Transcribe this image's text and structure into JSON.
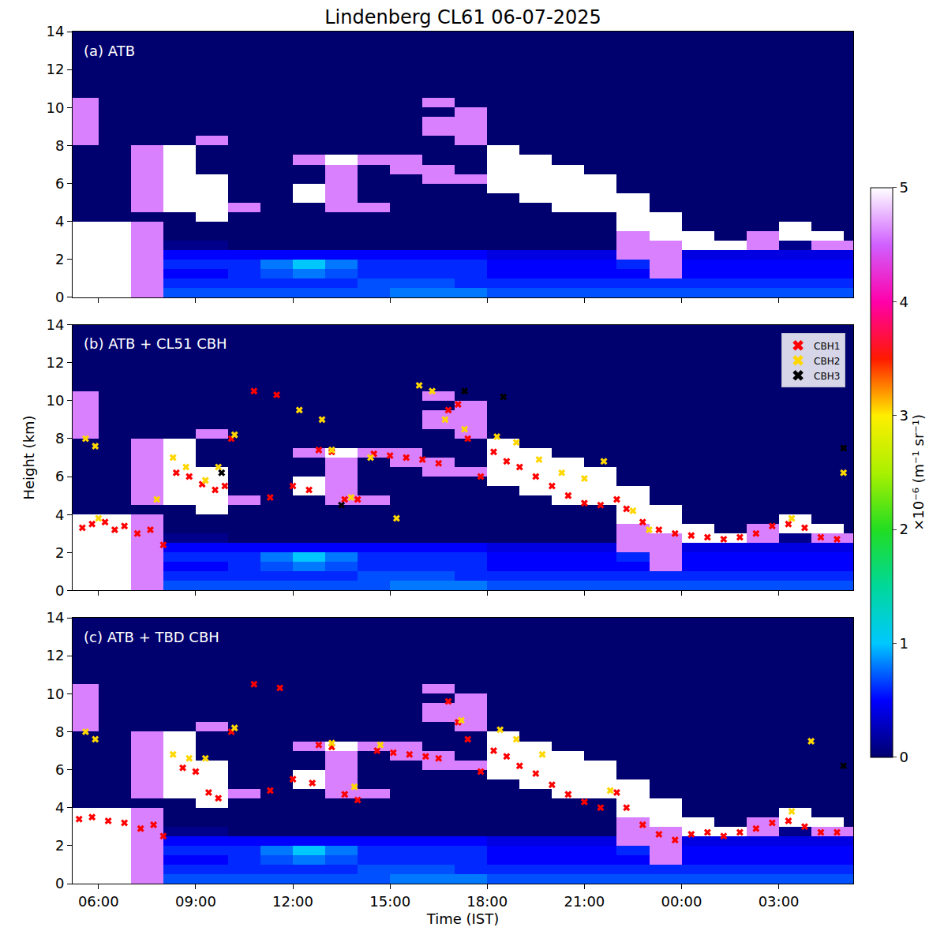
{
  "chart_data": {
    "type": "heatmap",
    "title": "Lindenberg CL61 06-07-2025",
    "x_label": "Time (IST)",
    "y_label": "Height (km)",
    "xlim": [
      5.2,
      29.3
    ],
    "xticks": [
      {
        "value": 6,
        "label": "06:00"
      },
      {
        "value": 9,
        "label": "09:00"
      },
      {
        "value": 12,
        "label": "12:00"
      },
      {
        "value": 15,
        "label": "15:00"
      },
      {
        "value": 18,
        "label": "18:00"
      },
      {
        "value": 21,
        "label": "21:00"
      },
      {
        "value": 24,
        "label": "00:00"
      },
      {
        "value": 27,
        "label": "03:00"
      }
    ],
    "ylim": [
      0,
      14
    ],
    "yticks": [
      0,
      2,
      4,
      6,
      8,
      10,
      12,
      14
    ],
    "colorbar": {
      "title": "×10⁻⁶ (m⁻¹ sr⁻¹)",
      "range": [
        0,
        5
      ],
      "ticks": [
        0,
        1,
        2,
        3,
        4,
        5
      ]
    },
    "cells": {
      "x": [
        5.5,
        6.5,
        7.5,
        8.5,
        9.5,
        10.5,
        11.5,
        12.5,
        13.5,
        14.5,
        15.5,
        16.5,
        17.5,
        18.5,
        19.5,
        20.5,
        21.5,
        22.5,
        23.5,
        24.5,
        25.5,
        26.5,
        27.5,
        28.5,
        29.5
      ],
      "y": [
        0.25,
        0.75,
        1.25,
        1.75,
        2.25,
        2.75,
        3.25,
        3.75,
        4.25,
        4.75,
        5.25,
        5.75,
        6.25,
        6.75,
        7.25,
        7.75,
        8.25,
        8.75,
        9.25,
        9.75,
        10.25,
        10.75,
        11.25,
        11.75,
        12.25,
        12.75,
        13.25,
        13.75
      ],
      "z": [
        [
          5,
          5,
          4.6,
          0.7,
          0.7,
          0.7,
          0.7,
          0.7,
          0.7,
          0.7,
          0.8,
          0.8,
          0.8,
          0.7,
          0.7,
          0.7,
          0.7,
          0.7,
          0.7,
          0.7,
          0.7,
          0.7,
          0.7,
          0.7,
          0.7
        ],
        [
          5,
          5,
          4.6,
          0.6,
          0.6,
          0.6,
          0.6,
          0.6,
          0.6,
          0.7,
          0.7,
          0.7,
          0.6,
          0.6,
          0.6,
          0.6,
          0.6,
          0.6,
          0.6,
          0.6,
          0.6,
          0.6,
          0.6,
          0.6,
          0.6
        ],
        [
          5,
          5,
          4.6,
          0.5,
          0.5,
          0.6,
          0.7,
          0.8,
          0.7,
          0.6,
          0.6,
          0.6,
          0.6,
          0.5,
          0.5,
          0.5,
          0.5,
          0.5,
          4.6,
          0.5,
          0.5,
          0.5,
          0.5,
          0.5,
          0.5
        ],
        [
          5,
          5,
          4.6,
          0.6,
          0.6,
          0.6,
          0.8,
          1,
          0.8,
          0.6,
          0.6,
          0.6,
          0.6,
          0.5,
          0.5,
          0.5,
          0.5,
          0.6,
          4.6,
          0.5,
          0.5,
          0.5,
          0.5,
          0.5,
          0.5
        ],
        [
          5,
          5,
          4.6,
          0.5,
          0.5,
          0.5,
          0.5,
          0.5,
          0.5,
          0.5,
          0.5,
          0.5,
          0.5,
          0.4,
          0.4,
          0.4,
          0.4,
          4.6,
          4.6,
          0.4,
          0.4,
          0.4,
          0.4,
          0.4,
          0.4
        ],
        [
          5,
          5,
          4.6,
          0.1,
          0.1,
          0,
          0,
          0,
          0,
          0,
          0,
          0,
          0,
          0,
          0,
          0,
          0,
          4.6,
          4.6,
          5,
          5,
          4.6,
          0.1,
          4.6,
          4.6
        ],
        [
          5,
          5,
          4.6,
          0,
          0,
          0,
          0,
          0,
          0,
          0,
          0,
          0,
          0,
          0,
          0,
          0,
          0,
          4.6,
          5,
          5,
          0,
          4.6,
          5,
          5,
          0
        ],
        [
          5,
          5,
          4.6,
          0,
          0,
          0,
          0,
          0,
          0,
          0,
          0,
          0,
          0,
          0,
          0,
          0,
          0,
          5,
          5,
          0,
          0,
          0,
          5,
          0,
          0
        ],
        [
          0,
          0,
          0,
          0,
          5,
          0,
          0,
          0,
          0,
          0,
          0,
          0,
          0,
          0,
          0,
          0,
          0,
          5,
          5,
          0,
          0,
          0,
          0,
          0,
          0
        ],
        [
          0,
          0,
          4.6,
          5,
          5,
          4.6,
          0,
          0,
          4.6,
          4.6,
          0,
          0,
          0,
          0,
          0,
          5,
          5,
          5,
          0,
          0,
          0,
          0,
          0,
          0,
          0
        ],
        [
          0,
          0,
          4.6,
          5,
          5,
          0,
          0,
          5,
          4.6,
          0,
          0,
          0,
          0,
          0,
          5,
          5,
          5,
          5,
          0,
          0,
          0,
          0,
          0,
          0,
          0
        ],
        [
          0,
          0,
          4.6,
          5,
          5,
          0,
          0,
          5,
          4.6,
          0,
          0,
          0,
          0,
          5,
          5,
          5,
          5,
          0,
          0,
          0,
          0,
          0,
          0,
          0,
          0
        ],
        [
          0,
          0,
          4.6,
          5,
          5,
          0,
          0,
          0,
          4.6,
          0,
          0,
          4.6,
          4.6,
          5,
          5,
          5,
          5,
          0,
          0,
          0,
          0,
          0,
          0,
          0,
          0
        ],
        [
          0,
          0,
          4.6,
          5,
          0,
          0,
          0,
          0,
          4.6,
          0,
          4.6,
          4.6,
          0,
          5,
          5,
          5,
          0,
          0,
          0,
          0,
          0,
          0,
          0,
          0,
          0
        ],
        [
          0,
          0,
          4.6,
          5,
          0,
          0,
          0,
          4.6,
          5,
          4.6,
          4.6,
          0,
          0,
          5,
          5,
          0,
          0,
          0,
          0,
          0,
          0,
          0,
          0,
          0,
          0
        ],
        [
          0,
          0,
          4.6,
          5,
          0,
          0,
          0,
          0,
          0,
          0,
          0,
          0,
          0,
          5,
          0,
          0,
          0,
          0,
          0,
          0,
          0,
          0,
          0,
          0,
          0
        ],
        [
          4.6,
          0,
          0,
          0,
          4.6,
          0,
          0,
          0,
          0,
          0,
          0,
          0,
          4.6,
          0,
          0,
          0,
          0,
          0,
          0,
          0,
          0,
          0,
          0,
          0,
          0
        ],
        [
          4.6,
          0,
          0,
          0,
          0,
          0,
          0,
          0,
          0,
          0,
          0,
          4.6,
          4.6,
          0,
          0,
          0,
          0,
          0,
          0,
          0,
          0,
          0,
          0,
          0,
          0
        ],
        [
          4.6,
          0,
          0,
          0,
          0,
          0,
          0,
          0,
          0,
          0,
          0,
          4.6,
          4.6,
          0,
          0,
          0,
          0,
          0,
          0,
          0,
          0,
          0,
          0,
          0,
          0
        ],
        [
          4.6,
          0,
          0,
          0,
          0,
          0,
          0,
          0,
          0,
          0,
          0,
          0,
          4.6,
          0,
          0,
          0,
          0,
          0,
          0,
          0,
          0,
          0,
          0,
          0,
          0
        ],
        [
          4.6,
          0,
          0,
          0,
          0,
          0,
          0,
          0,
          0,
          0,
          0,
          4.6,
          0,
          0,
          0,
          0,
          0,
          0,
          0,
          0,
          0,
          0,
          0,
          0,
          0
        ],
        [
          0,
          0,
          0,
          0,
          0,
          0,
          0,
          0,
          0,
          0,
          0,
          0,
          0,
          0,
          0,
          0,
          0,
          0,
          0,
          0,
          0,
          0,
          0,
          0,
          0
        ],
        [
          0,
          0,
          0,
          0,
          0,
          0,
          0,
          0,
          0,
          0,
          0,
          0,
          0,
          0,
          0,
          0,
          0,
          0,
          0,
          0,
          0,
          0,
          0,
          0,
          0
        ],
        [
          0,
          0,
          0,
          0,
          0,
          0,
          0,
          0,
          0,
          0,
          0,
          0,
          0,
          0,
          0,
          0,
          0,
          0,
          0,
          0,
          0,
          0,
          0,
          0,
          0
        ],
        [
          0,
          0,
          0,
          0,
          0,
          0,
          0,
          0,
          0,
          0,
          0,
          0,
          0,
          0,
          0,
          0,
          0,
          0,
          0,
          0,
          0,
          0,
          0,
          0,
          0
        ],
        [
          0,
          0,
          0,
          0,
          0,
          0,
          0,
          0,
          0,
          0,
          0,
          0,
          0,
          0,
          0,
          0,
          0,
          0,
          0,
          0,
          0,
          0,
          0,
          0,
          0
        ],
        [
          0,
          0,
          0,
          0,
          0,
          0,
          0,
          0,
          0,
          0,
          0,
          0,
          0,
          0,
          0,
          0,
          0,
          0,
          0,
          0,
          0,
          0,
          0,
          0,
          0
        ],
        [
          0,
          0,
          0,
          0,
          0,
          0,
          0,
          0,
          0,
          0,
          0,
          0,
          0,
          0,
          0,
          0,
          0,
          0,
          0,
          0,
          0,
          0,
          0,
          0,
          0
        ]
      ]
    },
    "panels": [
      {
        "label": "(a) ATB"
      },
      {
        "label": "(b) ATB + CL51 CBH",
        "legend": "upper right",
        "series": [
          {
            "name": "CBH1",
            "color": "#ff0000",
            "marker": "x",
            "x": [
              5.5,
              5.8,
              6.2,
              6.5,
              6.8,
              7.2,
              7.6,
              8.0,
              8.4,
              8.8,
              9.2,
              9.6,
              9.9,
              10.1,
              10.8,
              11.3,
              11.5,
              12.0,
              12.5,
              12.8,
              13.2,
              13.6,
              14.0,
              14.5,
              15.0,
              15.5,
              16.0,
              16.5,
              16.8,
              17.1,
              17.4,
              17.8,
              18.2,
              18.6,
              19.0,
              19.5,
              20.0,
              20.5,
              21.0,
              21.5,
              22.0,
              22.3,
              22.8,
              23.3,
              23.8,
              24.3,
              24.8,
              25.3,
              25.8,
              26.3,
              26.8,
              27.3,
              27.8,
              28.3,
              28.8
            ],
            "y": [
              3.3,
              3.5,
              3.6,
              3.2,
              3.4,
              3.0,
              3.2,
              2.4,
              6.2,
              6.0,
              5.6,
              5.3,
              5.5,
              8.0,
              10.5,
              4.9,
              10.3,
              5.5,
              5.3,
              7.4,
              7.3,
              4.8,
              4.8,
              7.2,
              7.1,
              7.0,
              6.9,
              6.7,
              9.5,
              9.8,
              8.0,
              6.0,
              7.3,
              6.8,
              6.5,
              6.0,
              5.5,
              5.0,
              4.6,
              4.5,
              4.8,
              4.3,
              3.6,
              3.2,
              3.0,
              2.9,
              2.8,
              2.7,
              2.8,
              3.0,
              3.4,
              3.5,
              3.3,
              2.8,
              2.7
            ]
          },
          {
            "name": "CBH2",
            "color": "#ffd700",
            "marker": "x",
            "x": [
              5.6,
              5.9,
              6.0,
              7.8,
              8.3,
              8.7,
              9.3,
              9.7,
              10.2,
              12.2,
              12.9,
              13.2,
              13.8,
              14.4,
              15.2,
              15.9,
              16.3,
              16.7,
              17.3,
              18.3,
              18.9,
              19.6,
              20.3,
              21.0,
              21.6,
              22.5,
              23.0,
              27.4,
              29.0
            ],
            "y": [
              8.0,
              7.6,
              3.8,
              4.8,
              7.0,
              6.5,
              5.8,
              6.5,
              8.2,
              9.5,
              9.0,
              7.4,
              4.9,
              7.0,
              3.8,
              10.8,
              10.5,
              9.0,
              8.5,
              8.1,
              7.8,
              6.9,
              6.2,
              5.9,
              6.8,
              4.2,
              3.2,
              3.8,
              6.2
            ]
          },
          {
            "name": "CBH3",
            "color": "#000000",
            "marker": "x",
            "x": [
              9.8,
              13.5,
              17.3,
              18.5,
              29.0
            ],
            "y": [
              6.2,
              4.5,
              10.5,
              10.2,
              7.5
            ]
          }
        ]
      },
      {
        "label": "(c) ATB + TBD CBH",
        "series": [
          {
            "name": "CBH1",
            "color": "#ff0000",
            "marker": "x",
            "x": [
              5.4,
              5.8,
              6.3,
              6.8,
              7.3,
              7.7,
              8.0,
              8.6,
              9.0,
              9.4,
              9.7,
              10.1,
              10.8,
              11.3,
              11.6,
              12.0,
              12.6,
              12.8,
              13.2,
              13.6,
              14.0,
              14.6,
              15.1,
              15.6,
              16.1,
              16.5,
              16.8,
              17.1,
              17.4,
              17.8,
              18.2,
              18.6,
              19.0,
              19.5,
              20.0,
              20.5,
              21.0,
              21.5,
              22.0,
              22.3,
              22.8,
              23.3,
              23.8,
              24.3,
              24.8,
              25.3,
              25.8,
              26.3,
              26.8,
              27.3,
              27.8,
              28.3,
              28.8
            ],
            "y": [
              3.4,
              3.5,
              3.3,
              3.2,
              2.9,
              3.1,
              2.5,
              6.1,
              5.9,
              4.8,
              4.5,
              8.0,
              10.5,
              4.9,
              10.3,
              5.5,
              5.3,
              7.3,
              7.2,
              4.7,
              4.4,
              7.0,
              6.9,
              6.8,
              6.7,
              6.6,
              9.6,
              8.5,
              7.6,
              5.9,
              7.0,
              6.7,
              6.2,
              5.8,
              5.2,
              4.7,
              4.3,
              4.0,
              4.8,
              4.0,
              3.1,
              2.6,
              2.3,
              2.6,
              2.7,
              2.5,
              2.7,
              2.9,
              3.2,
              3.3,
              3.0,
              2.7,
              2.7
            ]
          },
          {
            "name": "CBH2",
            "color": "#ffd700",
            "marker": "x",
            "x": [
              5.6,
              5.9,
              8.3,
              8.8,
              9.3,
              10.2,
              13.2,
              13.9,
              14.7,
              17.2,
              18.4,
              18.9,
              19.7,
              21.8,
              27.4,
              28.0
            ],
            "y": [
              8.0,
              7.6,
              6.8,
              6.6,
              6.6,
              8.2,
              7.4,
              5.1,
              7.3,
              8.6,
              8.1,
              7.6,
              6.8,
              4.9,
              3.8,
              7.5
            ]
          },
          {
            "name": "CBH3",
            "color": "#000000",
            "marker": "x",
            "x": [
              29.0
            ],
            "y": [
              6.2
            ]
          }
        ]
      }
    ]
  }
}
